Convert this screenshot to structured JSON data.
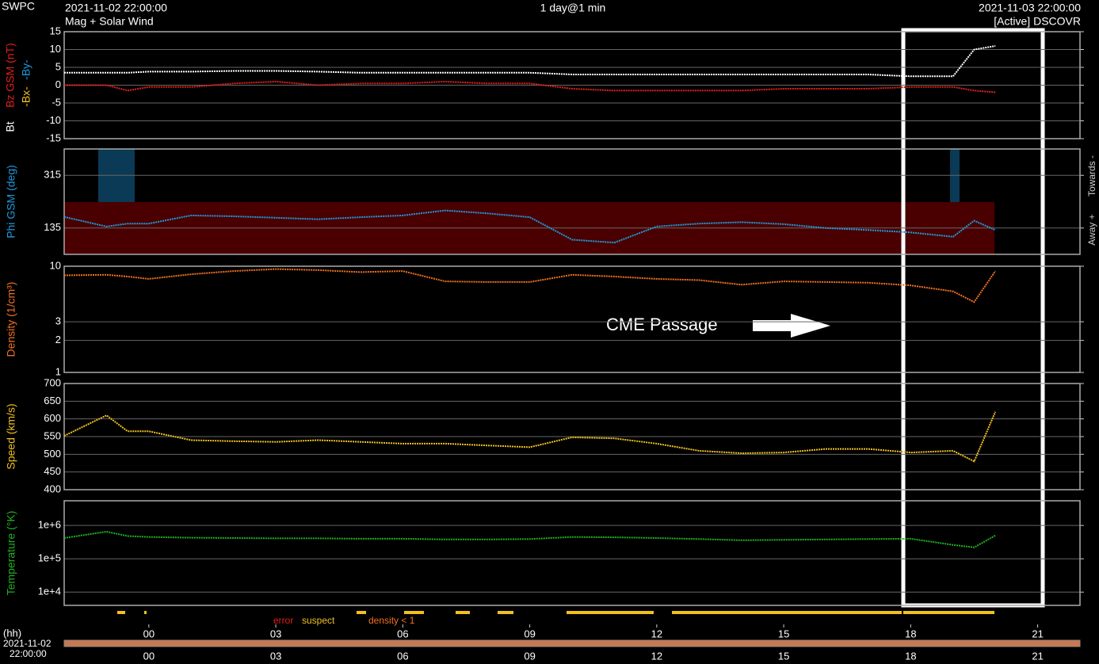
{
  "header": {
    "agency": "SWPC",
    "start": "2021-11-02 22:00:00",
    "subtitle": "Mag + Solar Wind",
    "span": "1 day@1 min",
    "end": "2021-11-03 22:00:00",
    "source": "[Active] DSCOVR"
  },
  "annotation": "CME Passage",
  "quality_legend": {
    "error": "error",
    "suspect": "suspect",
    "density": "density < 1"
  },
  "time_label": {
    "unit": "(hh)",
    "date": "2021-11-02",
    "time": "22:00:00"
  },
  "chart_data": [
    {
      "type": "line",
      "ylim": [
        -15,
        15
      ],
      "yticks": [
        -15,
        -10,
        -5,
        0,
        5,
        10,
        15
      ],
      "xlim": [
        -2,
        22
      ],
      "grid": true,
      "ylabel_parts": [
        {
          "text": "Bt",
          "color": "#ffffff"
        },
        {
          "text": "Bz GSM (nT)",
          "color": "#e0201c"
        },
        {
          "text": "-Bx-",
          "color": "#f0c020"
        },
        {
          "text": "-By-",
          "color": "#1e9bdc"
        }
      ],
      "x": [
        -2,
        -1,
        -0.5,
        0,
        1,
        2,
        3,
        4,
        5,
        6,
        7,
        8,
        9,
        10,
        11,
        12,
        13,
        14,
        15,
        16,
        17,
        18,
        19,
        19.5,
        20
      ],
      "series": [
        {
          "name": "Bt",
          "color": "#ffffff",
          "values": [
            3.5,
            3.5,
            3.5,
            3.8,
            3.8,
            4,
            4,
            3.8,
            3.5,
            3.5,
            3.5,
            3.5,
            3.5,
            3,
            3,
            3,
            3,
            3,
            3,
            3,
            3,
            2.5,
            2.5,
            10,
            11
          ]
        },
        {
          "name": "Bz GSM (nT)",
          "color": "#e0201c",
          "values": [
            0,
            0,
            -1.5,
            -0.5,
            -0.5,
            0.5,
            1,
            0,
            0.5,
            0.5,
            1,
            0.5,
            0.5,
            -1,
            -1.5,
            -1.5,
            -1.5,
            -1.5,
            -1,
            -1,
            -1,
            -0.5,
            -0.5,
            -1.5,
            -2
          ]
        }
      ]
    },
    {
      "type": "line",
      "ylim": [
        45,
        405
      ],
      "yticks": [
        135,
        315
      ],
      "xlim": [
        -2,
        22
      ],
      "grid": true,
      "ylabel": "Phi GSM (deg)",
      "side_labels": [
        "Away +",
        "Towards -"
      ],
      "x": [
        -2,
        -1,
        -0.5,
        0,
        1,
        2,
        3,
        4,
        5,
        6,
        7,
        8,
        9,
        10,
        11,
        12,
        13,
        14,
        15,
        16,
        17,
        18,
        19,
        19.5,
        20
      ],
      "series": [
        {
          "name": "Phi GSM (deg)",
          "color": "#1e9bdc",
          "values": [
            173,
            140,
            150,
            150,
            178,
            175,
            170,
            165,
            172,
            178,
            195,
            185,
            172,
            95,
            85,
            140,
            150,
            155,
            148,
            135,
            128,
            120,
            105,
            160,
            128
          ]
        }
      ]
    },
    {
      "type": "line",
      "log": true,
      "ylim": [
        1,
        10
      ],
      "yticks": [
        1,
        2,
        3,
        10
      ],
      "xlim": [
        -2,
        22
      ],
      "grid": true,
      "ylabel": "Density (1/cm³)",
      "x": [
        -2,
        -1,
        -0.5,
        0,
        1,
        2,
        3,
        4,
        5,
        6,
        7,
        8,
        9,
        10,
        11,
        12,
        13,
        14,
        15,
        16,
        17,
        18,
        19,
        19.5,
        20
      ],
      "series": [
        {
          "name": "Density (1/cm³)",
          "color": "#f07020",
          "values": [
            8.2,
            8.3,
            8,
            7.6,
            8.4,
            9,
            9.4,
            9.2,
            8.8,
            9,
            7.2,
            7.1,
            7.1,
            8.3,
            8,
            7.6,
            7.4,
            6.7,
            7.2,
            7.1,
            7,
            6.6,
            5.8,
            4.6,
            9
          ]
        }
      ]
    },
    {
      "type": "line",
      "ylim": [
        400,
        700
      ],
      "yticks": [
        400,
        450,
        500,
        550,
        600,
        650,
        700
      ],
      "xlim": [
        -2,
        22
      ],
      "grid": true,
      "ylabel": "Speed (km/s)",
      "x": [
        -2,
        -1,
        -0.5,
        0,
        1,
        2,
        3,
        4,
        5,
        6,
        7,
        8,
        9,
        10,
        11,
        12,
        13,
        14,
        15,
        16,
        17,
        18,
        19,
        19.5,
        20
      ],
      "series": [
        {
          "name": "Speed (km/s)",
          "color": "#f0c020",
          "values": [
            552,
            610,
            565,
            565,
            540,
            537,
            535,
            540,
            535,
            530,
            530,
            525,
            520,
            548,
            545,
            530,
            510,
            503,
            505,
            515,
            515,
            505,
            510,
            480,
            620
          ]
        }
      ]
    },
    {
      "type": "line",
      "log": true,
      "ylim": [
        4000,
        5500000
      ],
      "xlim": [
        -2,
        22
      ],
      "grid": true,
      "yticks": [
        {
          "value": 10000,
          "label": "1e+4"
        },
        {
          "value": 100000,
          "label": "1e+5"
        },
        {
          "value": 1000000,
          "label": "1e+6"
        }
      ],
      "xticks": [
        {
          "value": 0,
          "label": "00"
        },
        {
          "value": 3,
          "label": "03"
        },
        {
          "value": 6,
          "label": "06"
        },
        {
          "value": 9,
          "label": "09"
        },
        12,
        15,
        18,
        21
      ],
      "ylabel": "Temperature (°K)",
      "x": [
        -2,
        -1,
        -0.5,
        0,
        1,
        2,
        3,
        4,
        5,
        6,
        7,
        8,
        9,
        10,
        11,
        12,
        13,
        14,
        15,
        16,
        17,
        18,
        19,
        19.5,
        20
      ],
      "series": [
        {
          "name": "Temperature (°K)",
          "color": "#20b020",
          "values": [
            420000,
            650000,
            480000,
            450000,
            430000,
            420000,
            410000,
            410000,
            400000,
            400000,
            380000,
            380000,
            390000,
            450000,
            440000,
            420000,
            390000,
            360000,
            370000,
            380000,
            390000,
            400000,
            260000,
            220000,
            500000
          ]
        }
      ]
    }
  ]
}
